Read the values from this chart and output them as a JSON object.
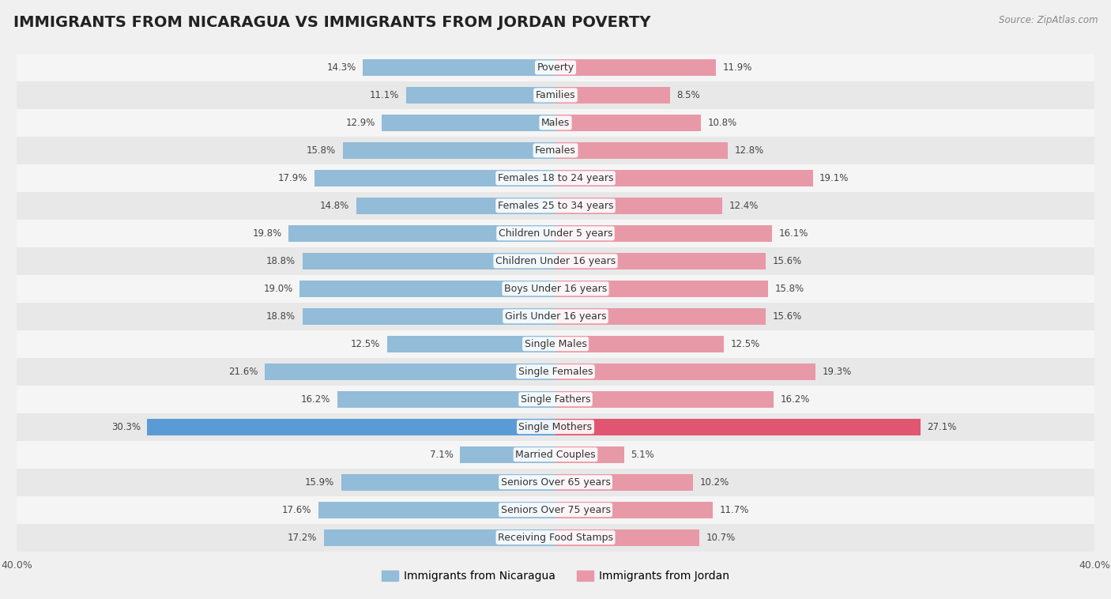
{
  "title": "IMMIGRANTS FROM NICARAGUA VS IMMIGRANTS FROM JORDAN POVERTY",
  "source": "Source: ZipAtlas.com",
  "categories": [
    "Poverty",
    "Families",
    "Males",
    "Females",
    "Females 18 to 24 years",
    "Females 25 to 34 years",
    "Children Under 5 years",
    "Children Under 16 years",
    "Boys Under 16 years",
    "Girls Under 16 years",
    "Single Males",
    "Single Females",
    "Single Fathers",
    "Single Mothers",
    "Married Couples",
    "Seniors Over 65 years",
    "Seniors Over 75 years",
    "Receiving Food Stamps"
  ],
  "nicaragua_values": [
    14.3,
    11.1,
    12.9,
    15.8,
    17.9,
    14.8,
    19.8,
    18.8,
    19.0,
    18.8,
    12.5,
    21.6,
    16.2,
    30.3,
    7.1,
    15.9,
    17.6,
    17.2
  ],
  "jordan_values": [
    11.9,
    8.5,
    10.8,
    12.8,
    19.1,
    12.4,
    16.1,
    15.6,
    15.8,
    15.6,
    12.5,
    19.3,
    16.2,
    27.1,
    5.1,
    10.2,
    11.7,
    10.7
  ],
  "nicaragua_color": "#92bcd8",
  "jordan_color": "#e899a8",
  "single_mothers_nic_color": "#5b9bd5",
  "single_mothers_jor_color": "#e05570",
  "row_even_color": "#f5f5f5",
  "row_odd_color": "#e8e8e8",
  "background_color": "#f0f0f0",
  "axis_max": 40.0,
  "legend_nicaragua": "Immigrants from Nicaragua",
  "legend_jordan": "Immigrants from Jordan",
  "title_fontsize": 14,
  "label_fontsize": 9,
  "value_fontsize": 8.5
}
